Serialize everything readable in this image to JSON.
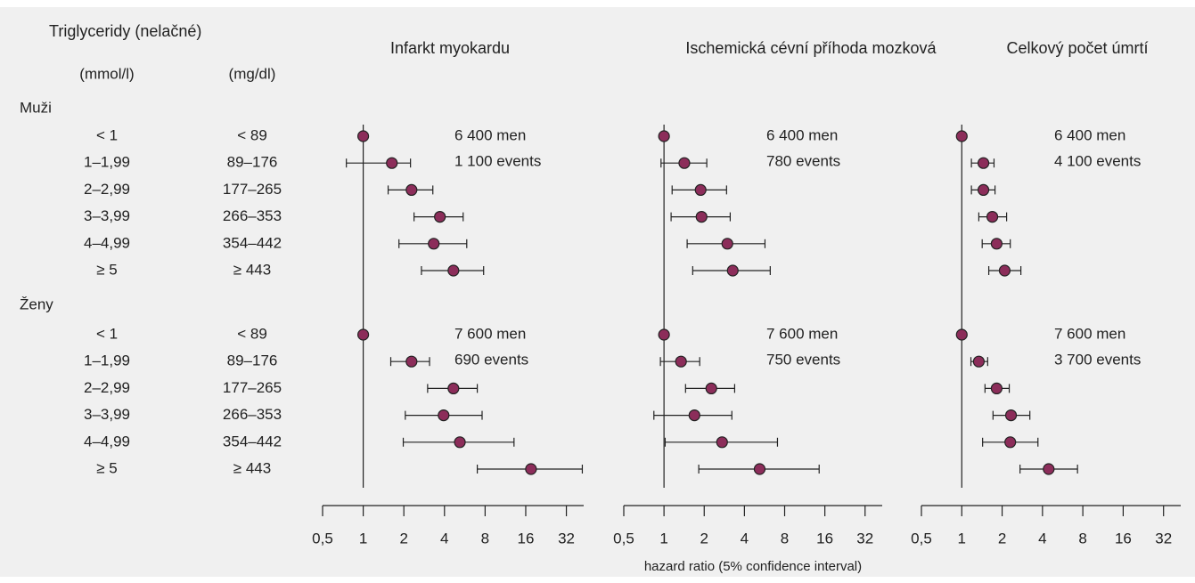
{
  "table": {
    "header": "Triglyceridy (nelačné)",
    "units": [
      "(mmol/l)",
      "(mg/dl)"
    ],
    "groups": [
      {
        "name": "Muži",
        "rows": [
          [
            "< 1",
            "< 89"
          ],
          [
            "1–1,99",
            "89–176"
          ],
          [
            "2–2,99",
            "177–265"
          ],
          [
            "3–3,99",
            "266–353"
          ],
          [
            "4–4,99",
            "354–442"
          ],
          [
            "≥ 5",
            "≥ 443"
          ]
        ]
      },
      {
        "name": "Ženy",
        "rows": [
          [
            "< 1",
            "< 89"
          ],
          [
            "1–1,99",
            "89–176"
          ],
          [
            "2–2,99",
            "177–265"
          ],
          [
            "3–3,99",
            "266–353"
          ],
          [
            "4–4,99",
            "354–442"
          ],
          [
            "≥ 5",
            "≥ 443"
          ]
        ]
      }
    ]
  },
  "x_label": "hazard ratio (5% confidence interval)",
  "chart_data": [
    {
      "type": "forest",
      "title": "Infarkt myokardu",
      "log_scale": true,
      "xlim": [
        0.5,
        43
      ],
      "xticks": [
        {
          "value": 0.5,
          "label": "0,5"
        },
        1,
        2,
        4,
        8,
        16,
        32
      ],
      "reference": 1,
      "color": "#8c2d5a",
      "series": [
        {
          "values": [
            1,
            1.63,
            2.28,
            3.7,
            3.33,
            4.66
          ],
          "lower": [
            null,
            0.75,
            1.53,
            2.38,
            1.84,
            2.7
          ],
          "upper": [
            null,
            2.24,
            3.28,
            5.5,
            5.85,
            7.8
          ],
          "annotations": [
            "6 400 men",
            "1 100 events"
          ]
        },
        {
          "values": [
            1,
            2.28,
            4.66,
            3.94,
            5.2,
            17.5
          ],
          "lower": [
            null,
            1.6,
            3.0,
            2.05,
            1.98,
            7.0
          ],
          "upper": [
            null,
            3.1,
            7.0,
            7.6,
            13.1,
            42
          ],
          "annotations": [
            "7 600 men",
            "690 events"
          ]
        }
      ]
    },
    {
      "type": "forest",
      "title": "Ischemická cévní příhoda mozková",
      "log_scale": true,
      "xlim": [
        0.5,
        43
      ],
      "xticks": [
        {
          "value": 0.5,
          "label": "0,5"
        },
        1,
        2,
        4,
        8,
        16,
        32
      ],
      "reference": 1,
      "color": "#8c2d5a",
      "series": [
        {
          "values": [
            1,
            1.42,
            1.88,
            1.91,
            2.98,
            3.27
          ],
          "lower": [
            null,
            0.95,
            1.15,
            1.13,
            1.49,
            1.64
          ],
          "upper": [
            null,
            2.09,
            2.94,
            3.13,
            5.7,
            6.24
          ],
          "annotations": [
            "6 400 men",
            "780 events"
          ]
        },
        {
          "values": [
            1,
            1.34,
            2.26,
            1.69,
            2.72,
            5.2
          ],
          "lower": [
            null,
            0.94,
            1.45,
            0.84,
            1.02,
            1.82
          ],
          "upper": [
            null,
            1.85,
            3.38,
            3.22,
            7.07,
            14.5
          ],
          "annotations": [
            "7 600 men",
            "750 events"
          ]
        }
      ]
    },
    {
      "type": "forest",
      "title": "Celkový počet úmrtí",
      "log_scale": true,
      "xlim": [
        0.5,
        43
      ],
      "xticks": [
        {
          "value": 0.5,
          "label": "0,5"
        },
        1,
        2,
        4,
        8,
        16,
        32
      ],
      "reference": 1,
      "color": "#8c2d5a",
      "series": [
        {
          "values": [
            1,
            1.45,
            1.45,
            1.69,
            1.82,
            2.09
          ],
          "lower": [
            null,
            1.18,
            1.18,
            1.34,
            1.42,
            1.59
          ],
          "upper": [
            null,
            1.74,
            1.77,
            2.16,
            2.3,
            2.76
          ],
          "annotations": [
            "6 400 men",
            "4 100 events"
          ]
        },
        {
          "values": [
            1,
            1.34,
            1.82,
            2.33,
            2.3,
            4.45
          ],
          "lower": [
            null,
            1.17,
            1.49,
            1.71,
            1.43,
            2.72
          ],
          "upper": [
            null,
            1.56,
            2.26,
            3.22,
            3.7,
            7.3
          ],
          "annotations": [
            "7 600 men",
            "3 700 events"
          ]
        }
      ]
    }
  ]
}
